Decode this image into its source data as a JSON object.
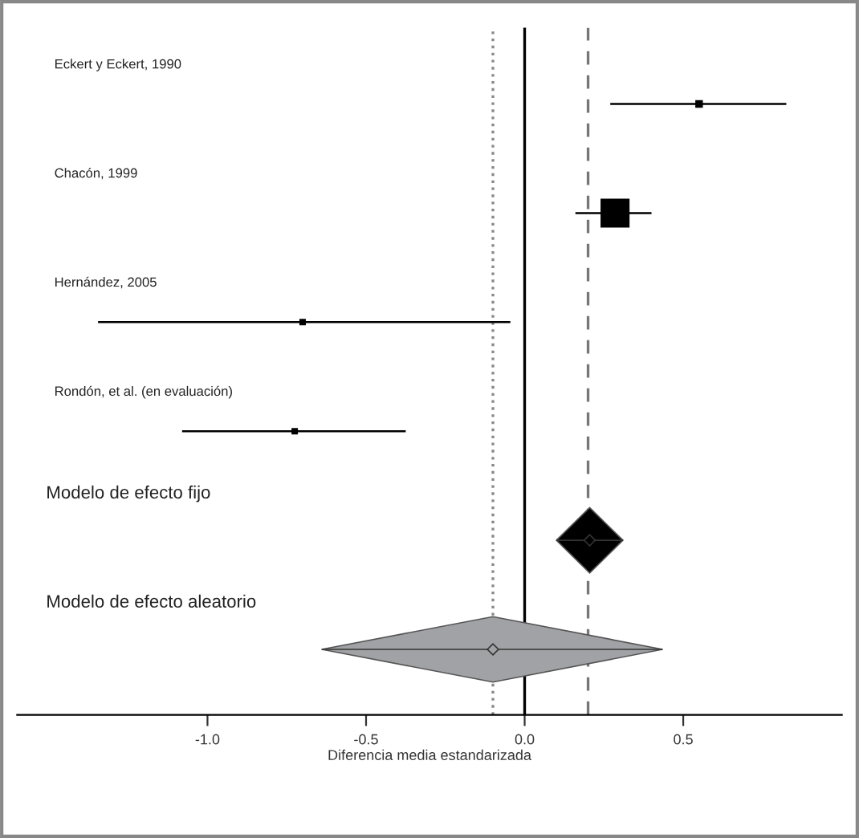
{
  "chart_data": {
    "type": "scatter",
    "orientation": "horizontal",
    "categories": [
      "Eckert y Eckert, 1990",
      "Chacón, 1999",
      "Hernández, 2005",
      "Rondón, et al. (en evaluación)",
      "Modelo de efecto fijo",
      "Modelo de efecto aleatorio"
    ],
    "series": [
      {
        "marker": "square",
        "color": "#000000",
        "values": [
          0.55,
          0.285,
          -0.7,
          -0.725,
          null,
          null
        ],
        "sizes": [
          0.04,
          1,
          0.01,
          0.02,
          null,
          null
        ],
        "errors": [
          [
            0.27,
            0.825
          ],
          [
            0.16,
            0.4
          ],
          [
            -1.345,
            -0.045
          ],
          [
            -1.08,
            -0.375
          ],
          null,
          null
        ]
      },
      {
        "marker": "diamond",
        "colors": [
          null,
          null,
          null,
          null,
          "#000000",
          "#a0a2a5"
        ],
        "values": [
          null,
          null,
          null,
          null,
          0.205,
          -0.1
        ],
        "errors": [
          null,
          null,
          null,
          null,
          [
            0.1,
            0.31
          ],
          [
            -0.64,
            0.435
          ]
        ]
      }
    ],
    "xlabel": "Diferencia media estandarizada",
    "xlim": [
      -1.6,
      1.0
    ],
    "xticks": [
      {
        "value": -1,
        "label": "-1.0"
      },
      {
        "value": -0.5,
        "label": "-0.5"
      },
      {
        "value": 0,
        "label": "0.0"
      },
      {
        "value": 0.5,
        "label": "0.5"
      }
    ],
    "ref_lines": [
      {
        "axis": "x",
        "value": 0,
        "color": "#000000",
        "line_style": "solid"
      },
      {
        "axis": "x",
        "value": -0.1,
        "color": "#888888",
        "line_style": "dotted"
      },
      {
        "axis": "x",
        "value": 0.2,
        "color": "#777777",
        "line_style": "dashed"
      }
    ],
    "grid": false
  }
}
